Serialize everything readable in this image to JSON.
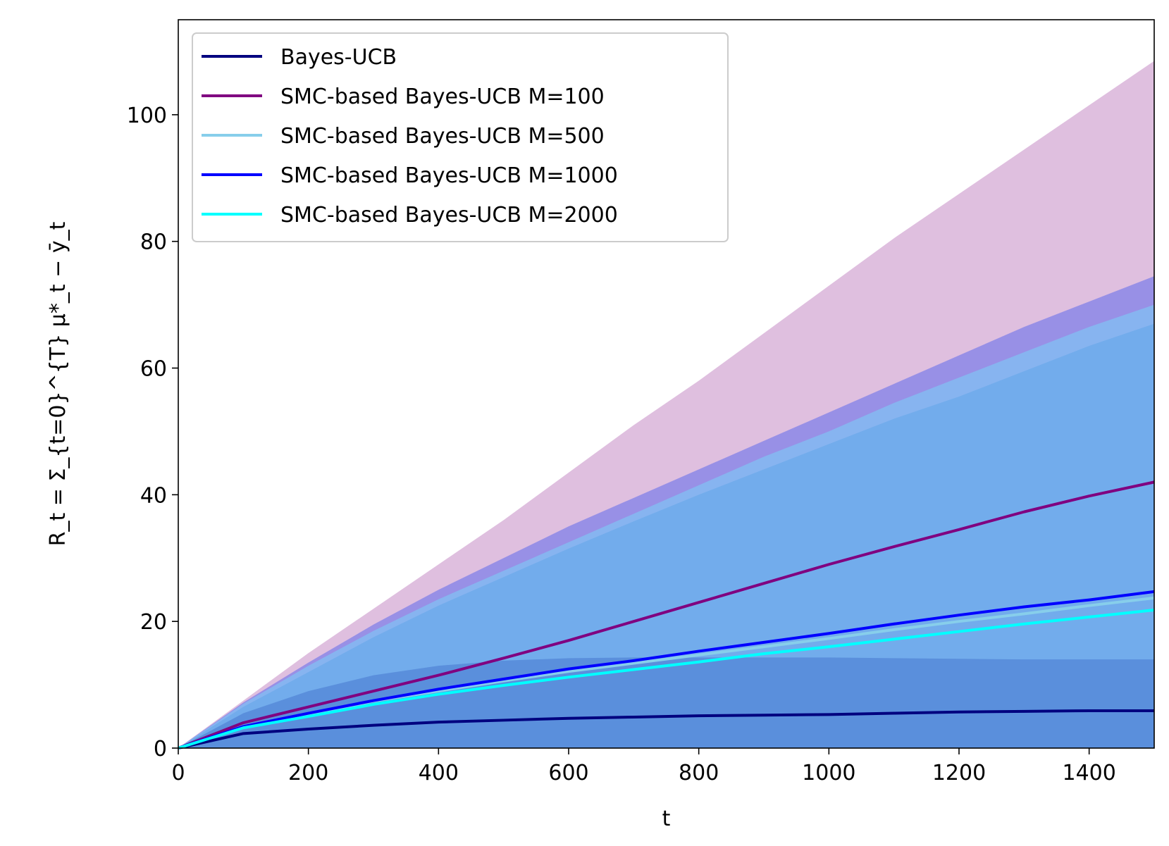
{
  "chart_data": {
    "type": "line",
    "title": "",
    "xlabel": "t",
    "ylabel": "R_t = Σ_{t=0}^{T} μ*_t − ȳ_t",
    "xlim": [
      0,
      1500
    ],
    "ylim": [
      0,
      115
    ],
    "x_ticks": [
      "0",
      "200",
      "400",
      "600",
      "800",
      "1000",
      "1200",
      "1400"
    ],
    "y_ticks": [
      "0",
      "20",
      "40",
      "60",
      "80",
      "100"
    ],
    "grid": false,
    "legend_position": "top-left",
    "x": [
      0,
      100,
      200,
      300,
      400,
      500,
      600,
      700,
      800,
      900,
      1000,
      1100,
      1200,
      1300,
      1400,
      1500
    ],
    "series": [
      {
        "name": "Bayes-UCB",
        "color": "#00007f",
        "values": [
          0,
          2.3,
          3.0,
          3.6,
          4.1,
          4.4,
          4.7,
          4.9,
          5.1,
          5.2,
          5.3,
          5.5,
          5.7,
          5.8,
          5.9,
          5.9
        ],
        "band_upper": [
          0,
          5.5,
          9.0,
          11.5,
          13.0,
          13.8,
          14.2,
          14.3,
          14.3,
          14.3,
          14.3,
          14.2,
          14.1,
          14.0,
          14.0,
          14.0
        ],
        "band_lower": [
          0,
          0,
          0,
          0,
          0,
          0,
          0,
          0,
          0,
          0,
          0,
          0,
          0,
          0,
          0,
          0
        ],
        "band_color": "#5a8fdc"
      },
      {
        "name": "SMC-based Bayes-UCB M=100",
        "color": "#800080",
        "values": [
          0,
          4.0,
          6.5,
          9.0,
          11.5,
          14.2,
          17.0,
          20.0,
          23.0,
          26.0,
          29.0,
          31.8,
          34.5,
          37.3,
          39.8,
          42.0
        ],
        "band_upper": [
          0,
          7.5,
          15.0,
          22.0,
          29.0,
          36.0,
          43.5,
          51.0,
          58.0,
          65.5,
          73.0,
          80.5,
          87.5,
          94.5,
          101.5,
          108.5
        ],
        "band_lower": [
          0,
          0,
          0,
          0,
          0,
          0,
          0,
          0,
          0,
          0,
          0,
          0,
          0,
          0,
          0,
          0
        ],
        "band_color": "#dfbfdf"
      },
      {
        "name": "SMC-based Bayes-UCB M=500",
        "color": "#87ceeb",
        "values": [
          0,
          3.3,
          5.2,
          7.4,
          9.0,
          10.6,
          12.1,
          13.4,
          14.7,
          16.0,
          17.3,
          18.7,
          20.0,
          21.2,
          22.5,
          23.7
        ],
        "band_upper": [
          0,
          7.0,
          13.0,
          18.5,
          23.5,
          28.0,
          32.5,
          37.0,
          41.5,
          46.0,
          50.0,
          54.5,
          58.5,
          62.5,
          66.5,
          70.0
        ],
        "band_lower": [
          0,
          0,
          0,
          0,
          0,
          0,
          0,
          0,
          0,
          0,
          0,
          0,
          0,
          0,
          0,
          0
        ],
        "band_color": "#87b4f0"
      },
      {
        "name": "SMC-based Bayes-UCB M=1000",
        "color": "#0000ff",
        "values": [
          0,
          3.4,
          5.5,
          7.5,
          9.3,
          10.9,
          12.5,
          13.8,
          15.3,
          16.7,
          18.1,
          19.6,
          21.0,
          22.3,
          23.4,
          24.7
        ],
        "band_upper": [
          0,
          7.2,
          13.5,
          19.5,
          25.0,
          30.0,
          35.0,
          39.5,
          44.0,
          48.5,
          53.0,
          57.5,
          62.0,
          66.5,
          70.5,
          74.5
        ],
        "band_lower": [
          0,
          0,
          0,
          0,
          0,
          0,
          0,
          0,
          0,
          0,
          0,
          0,
          0,
          0,
          0,
          0
        ],
        "band_color": "#9890e6"
      },
      {
        "name": "SMC-based Bayes-UCB M=2000",
        "color": "#00ffff",
        "values": [
          0,
          3.2,
          5.0,
          6.9,
          8.5,
          9.9,
          11.2,
          12.4,
          13.6,
          14.9,
          16.0,
          17.2,
          18.4,
          19.6,
          20.7,
          21.8
        ],
        "band_upper": [
          0,
          6.5,
          12.0,
          17.5,
          22.5,
          27.0,
          31.5,
          35.8,
          40.0,
          44.0,
          48.0,
          52.0,
          55.5,
          59.5,
          63.5,
          67.0
        ],
        "band_lower": [
          0,
          0,
          0,
          0,
          0,
          0,
          0,
          0,
          0,
          0,
          0,
          0,
          0,
          0,
          0,
          0
        ],
        "band_color": "#72acec"
      }
    ]
  }
}
